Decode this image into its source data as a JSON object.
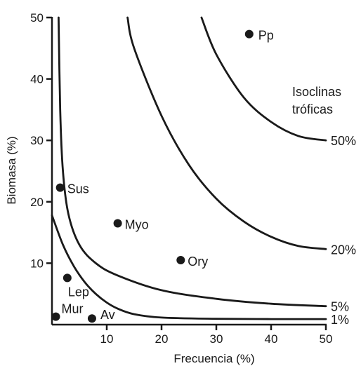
{
  "chart_data": {
    "type": "scatter",
    "xlabel": "Frecuencia (%)",
    "ylabel": "Biomasa (%)",
    "xlim": [
      0,
      50
    ],
    "ylim": [
      0,
      50
    ],
    "xticks": [
      10,
      20,
      30,
      40,
      50
    ],
    "yticks": [
      10,
      20,
      30,
      40,
      50
    ],
    "grid": false,
    "points": [
      {
        "label": "Pp",
        "x": 36,
        "y": 47.3
      },
      {
        "label": "Sus",
        "x": 1.5,
        "y": 22.3
      },
      {
        "label": "Myo",
        "x": 12,
        "y": 16.5
      },
      {
        "label": "Ory",
        "x": 23.5,
        "y": 10.5
      },
      {
        "label": "Lep",
        "x": 2.8,
        "y": 7.6
      },
      {
        "label": "Mur",
        "x": 0.7,
        "y": 1.3
      },
      {
        "label": "Av",
        "x": 7.3,
        "y": 1.0
      }
    ],
    "isoclines": {
      "title": [
        "Isoclinas",
        "tróficas"
      ],
      "series": [
        {
          "name": "50%",
          "points": [
            [
              27.3,
              50
            ],
            [
              30,
              44
            ],
            [
              35,
              37
            ],
            [
              40,
              33
            ],
            [
              45,
              30.7
            ],
            [
              50,
              30
            ]
          ]
        },
        {
          "name": "20%",
          "points": [
            [
              13.8,
              50
            ],
            [
              15,
              45
            ],
            [
              20,
              34
            ],
            [
              25,
              26
            ],
            [
              30,
              20.5
            ],
            [
              35,
              16.8
            ],
            [
              40,
              14.3
            ],
            [
              45,
              12.8
            ],
            [
              50,
              12.3
            ]
          ]
        },
        {
          "name": "5%",
          "points": [
            [
              1.2,
              50
            ],
            [
              1.5,
              35
            ],
            [
              2,
              25
            ],
            [
              3,
              18
            ],
            [
              5,
              13
            ],
            [
              8,
              10
            ],
            [
              12,
              8
            ],
            [
              20,
              5.6
            ],
            [
              30,
              4.2
            ],
            [
              40,
              3.4
            ],
            [
              50,
              3.0
            ]
          ]
        },
        {
          "name": "1%",
          "points": [
            [
              0,
              17.8
            ],
            [
              2,
              13
            ],
            [
              4,
              9.5
            ],
            [
              6,
              6.9
            ],
            [
              8,
              5
            ],
            [
              10,
              3.6
            ],
            [
              12,
              2.6
            ],
            [
              15,
              1.7
            ],
            [
              20,
              1.15
            ],
            [
              30,
              0.95
            ],
            [
              40,
              0.9
            ],
            [
              50,
              0.9
            ]
          ]
        }
      ]
    }
  }
}
